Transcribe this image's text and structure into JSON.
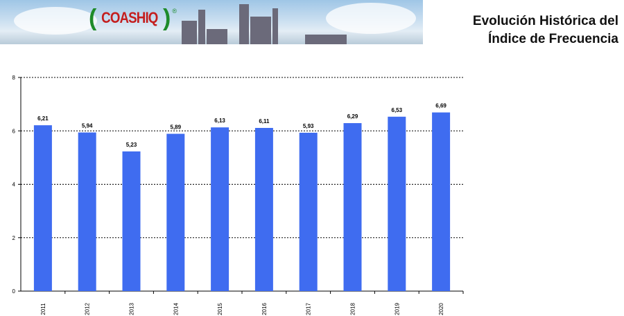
{
  "header": {
    "logo_text": "COASHIQ",
    "logo_mark": "®",
    "title_line1": "Evolución Histórica del",
    "title_line2": "Índice de Frecuencia"
  },
  "chart_data": {
    "type": "bar",
    "categories": [
      "2011",
      "2012",
      "2013",
      "2014",
      "2015",
      "2016",
      "2017",
      "2018",
      "2019",
      "2020"
    ],
    "values": [
      6.21,
      5.94,
      5.23,
      5.89,
      6.13,
      6.11,
      5.93,
      6.29,
      6.53,
      6.69
    ],
    "value_labels": [
      "6,21",
      "5,94",
      "5,23",
      "5,89",
      "6,13",
      "6,11",
      "5,93",
      "6,29",
      "6,53",
      "6,69"
    ],
    "ylim": [
      0,
      8
    ],
    "yticks": [
      "0",
      "2",
      "4",
      "6",
      "8"
    ],
    "grid": true,
    "bar_color": "#3f6cf0",
    "title": "",
    "xlabel": "",
    "ylabel": ""
  }
}
